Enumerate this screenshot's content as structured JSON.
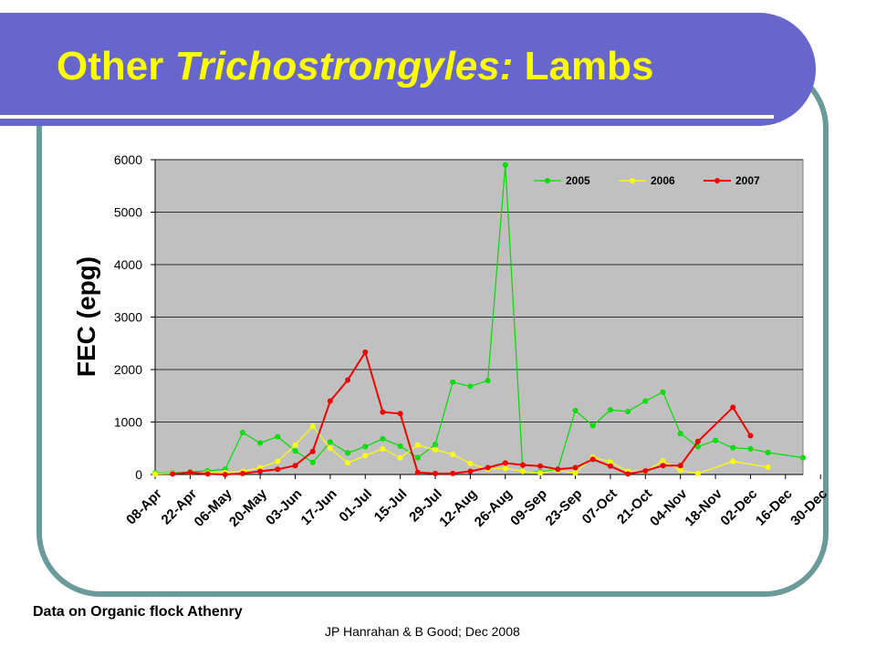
{
  "slide": {
    "title_part1": "Other ",
    "title_part2": "Trichostrongyles:",
    "title_part3": "  Lambs",
    "footer_left": "Data on Organic flock Athenry",
    "footer_center": "JP Hanrahan & B Good; Dec 2008"
  },
  "colors": {
    "title_bar": "#6666cc",
    "title_text": "#ffff00",
    "frame": "#6b9a9a",
    "plot_bg": "#c0c0c0"
  },
  "chart_data": {
    "type": "line",
    "title": "",
    "xlabel": "",
    "ylabel": "FEC (epg)",
    "ylim": [
      0,
      6000
    ],
    "yticks": [
      0,
      1000,
      2000,
      3000,
      4000,
      5000,
      6000
    ],
    "xlim": [
      0,
      37
    ],
    "x_tick_labels": [
      "08-Apr",
      "22-Apr",
      "06-May",
      "20-May",
      "03-Jun",
      "17-Jun",
      "01-Jul",
      "15-Jul",
      "29-Jul",
      "12-Aug",
      "26-Aug",
      "09-Sep",
      "23-Sep",
      "07-Oct",
      "21-Oct",
      "04-Nov",
      "18-Nov",
      "02-Dec",
      "16-Dec",
      "30-Dec"
    ],
    "legend_position": "top-right",
    "grid": true,
    "series": [
      {
        "name": "2005",
        "color": "#00dd00",
        "x": [
          0,
          1,
          2,
          3,
          4,
          5,
          6,
          7,
          8,
          9,
          10,
          11,
          12,
          13,
          14,
          15,
          16,
          17,
          18,
          19,
          20,
          21,
          22,
          23,
          24,
          25,
          26,
          27,
          28,
          29,
          30,
          31,
          32,
          33,
          34,
          35,
          37
        ],
        "values": [
          30,
          30,
          50,
          70,
          100,
          800,
          600,
          720,
          450,
          230,
          620,
          410,
          530,
          680,
          540,
          320,
          570,
          1760,
          1680,
          1790,
          5900,
          50,
          50,
          100,
          1220,
          930,
          1230,
          1200,
          1400,
          1570,
          780,
          530,
          650,
          510,
          490,
          420,
          320
        ]
      },
      {
        "name": "2006",
        "color": "#ffff00",
        "x": [
          0,
          1,
          2,
          3,
          4,
          5,
          6,
          7,
          8,
          9,
          10,
          11,
          12,
          13,
          14,
          15,
          16,
          17,
          18,
          19,
          20,
          21,
          22,
          23,
          24,
          25,
          26,
          27,
          28,
          29,
          30,
          31,
          33,
          35
        ],
        "values": [
          10,
          20,
          40,
          30,
          40,
          60,
          130,
          250,
          560,
          920,
          500,
          220,
          360,
          490,
          320,
          560,
          470,
          380,
          210,
          100,
          120,
          60,
          30,
          80,
          30,
          330,
          240,
          60,
          60,
          260,
          80,
          20,
          250,
          140
        ]
      },
      {
        "name": "2007",
        "color": "#ee0000",
        "x": [
          1,
          2,
          3,
          4,
          5,
          6,
          7,
          8,
          9,
          10,
          11,
          12,
          13,
          14,
          15,
          16,
          17,
          18,
          19,
          20,
          21,
          22,
          23,
          24,
          25,
          26,
          27,
          28,
          29,
          30,
          31,
          33,
          34
        ],
        "values": [
          10,
          40,
          10,
          0,
          20,
          60,
          100,
          170,
          440,
          1400,
          1800,
          2330,
          1190,
          1160,
          40,
          20,
          20,
          60,
          130,
          220,
          180,
          160,
          100,
          130,
          290,
          160,
          10,
          70,
          170,
          170,
          630,
          1280,
          740
        ]
      }
    ]
  }
}
